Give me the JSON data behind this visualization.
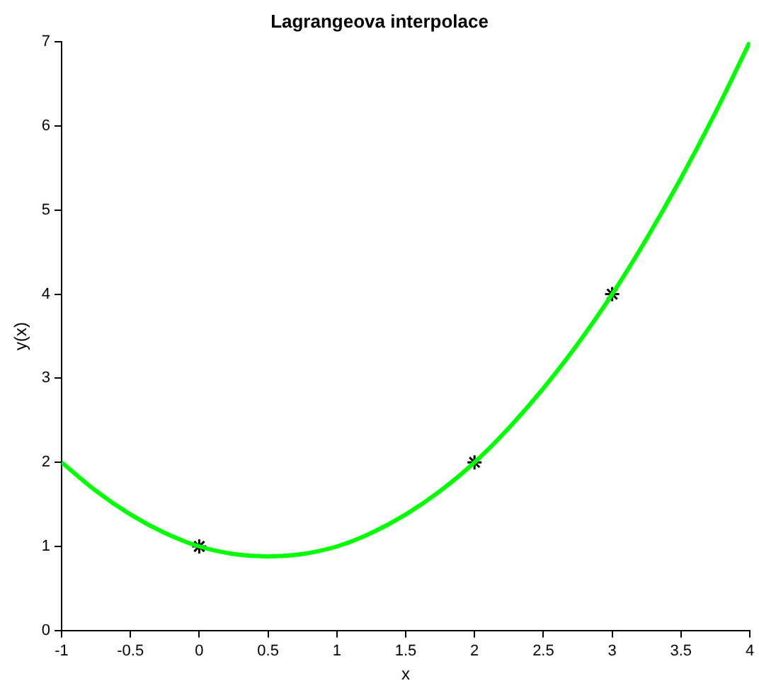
{
  "chart_data": {
    "type": "line",
    "title": "Lagrangeova interpolace",
    "xlabel": "x",
    "ylabel": "y(x)",
    "xlim": [
      -1,
      4
    ],
    "xticks": [
      -1,
      -0.5,
      0,
      0.5,
      1,
      1.5,
      2,
      2.5,
      3,
      3.5,
      4
    ],
    "ylim": [
      0,
      7
    ],
    "yticks": [
      0,
      1,
      2,
      3,
      4,
      5,
      6,
      7
    ],
    "grid": false,
    "legend": false,
    "series": [
      {
        "type": "line",
        "color": "#00ff00",
        "marker": "none",
        "line_style": "solid",
        "x": [
          -1,
          -0.75,
          -0.5,
          -0.25,
          0,
          0.25,
          0.5,
          0.75,
          1,
          1.25,
          1.5,
          1.75,
          2,
          2.25,
          2.5,
          2.75,
          3,
          3.25,
          3.5,
          3.75,
          4
        ],
        "values": [
          2,
          1.66,
          1.38,
          1.16,
          1,
          0.91,
          0.88,
          0.91,
          1,
          1.16,
          1.38,
          1.66,
          2,
          2.41,
          2.88,
          3.41,
          4,
          4.66,
          5.38,
          6.16,
          7
        ]
      },
      {
        "type": "scatter",
        "color": "#000000",
        "marker": "cross",
        "x": [
          0,
          2,
          3
        ],
        "values": [
          1,
          2,
          4
        ]
      }
    ]
  }
}
